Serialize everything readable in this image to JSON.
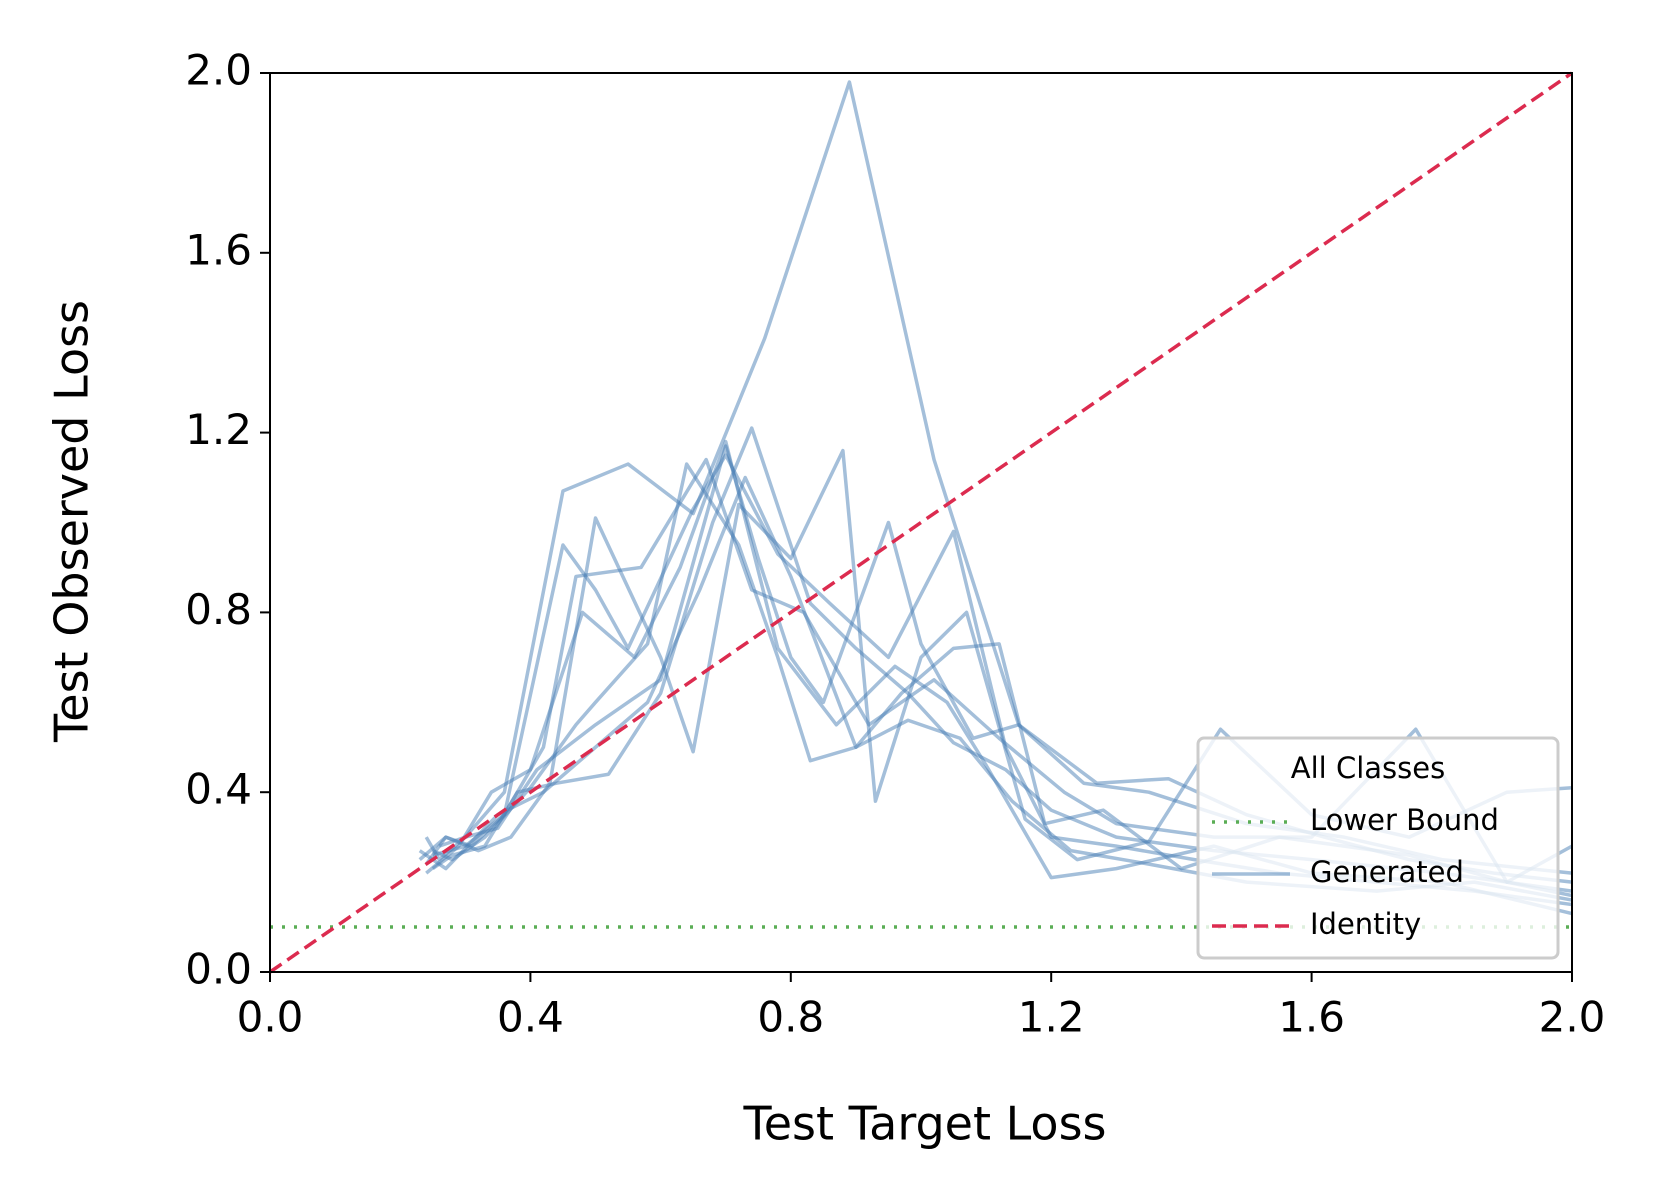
{
  "chart_data": {
    "type": "line",
    "xlabel": "Test Target Loss",
    "ylabel": "Test Observed Loss",
    "xlim": [
      0,
      2
    ],
    "ylim": [
      0,
      2
    ],
    "xticks": [
      {
        "value": 0,
        "label": "0.0"
      },
      0.4,
      0.8,
      1.2,
      1.6,
      {
        "value": 2,
        "label": "2.0"
      }
    ],
    "yticks": [
      {
        "value": 0,
        "label": "0.0"
      },
      0.4,
      0.8,
      1.2,
      1.6,
      {
        "value": 2,
        "label": "2.0"
      }
    ],
    "legend_title": "All Classes",
    "legend": "lower right",
    "series": [
      {
        "name": "Lower Bound",
        "color": "#5aad55",
        "dash": "dotted",
        "x": [
          0,
          2
        ],
        "values": [
          0.1,
          0.1
        ]
      },
      {
        "name": "Generated",
        "color": "#4a7fb5",
        "opacity": 0.5,
        "lines": [
          {
            "x": [
              0.24,
              0.26,
              0.3,
              0.36,
              0.45,
              0.55,
              0.65,
              0.76,
              0.89,
              1.02,
              1.15,
              1.27,
              1.38,
              1.5,
              1.62,
              1.75,
              1.88,
              2.0
            ],
            "values": [
              0.3,
              0.25,
              0.3,
              0.4,
              1.07,
              1.13,
              1.02,
              1.41,
              1.98,
              1.14,
              0.55,
              0.42,
              0.43,
              0.35,
              0.3,
              0.25,
              0.22,
              0.2
            ]
          },
          {
            "x": [
              0.23,
              0.27,
              0.31,
              0.36,
              0.45,
              0.5,
              0.55,
              0.65,
              0.7,
              0.78,
              0.86,
              0.95,
              1.05,
              1.13,
              1.2,
              1.3,
              1.42,
              1.55,
              1.7,
              1.85,
              2.0
            ],
            "values": [
              0.25,
              0.3,
              0.28,
              0.35,
              0.95,
              0.85,
              0.72,
              1.03,
              1.15,
              0.93,
              0.82,
              0.7,
              0.98,
              0.5,
              0.3,
              0.28,
              0.25,
              0.22,
              0.2,
              0.18,
              0.15
            ]
          },
          {
            "x": [
              0.25,
              0.28,
              0.33,
              0.4,
              0.47,
              0.5,
              0.58,
              0.64,
              0.72,
              0.78,
              0.83,
              0.9,
              0.97,
              1.05,
              1.12,
              1.19,
              1.28,
              1.4,
              1.55,
              1.75,
              1.9,
              2.0
            ],
            "values": [
              0.27,
              0.25,
              0.3,
              0.41,
              0.55,
              0.6,
              0.73,
              1.13,
              0.95,
              0.7,
              0.47,
              0.5,
              0.62,
              0.72,
              0.73,
              0.33,
              0.36,
              0.23,
              0.3,
              0.26,
              0.2,
              0.17
            ]
          },
          {
            "x": [
              0.24,
              0.27,
              0.32,
              0.37,
              0.43,
              0.5,
              0.6,
              0.65,
              0.72,
              0.8,
              0.88,
              0.93,
              1.0,
              1.07,
              1.16,
              1.24,
              1.35,
              1.46,
              1.6,
              1.75,
              1.9,
              2.0
            ],
            "values": [
              0.24,
              0.3,
              0.27,
              0.3,
              0.42,
              1.01,
              0.7,
              0.49,
              1.04,
              0.92,
              1.16,
              0.38,
              0.7,
              0.8,
              0.34,
              0.25,
              0.29,
              0.54,
              0.35,
              0.3,
              0.4,
              0.41
            ]
          },
          {
            "x": [
              0.25,
              0.3,
              0.36,
              0.42,
              0.47,
              0.57,
              0.67,
              0.74,
              0.82,
              0.92,
              1.02,
              1.12,
              1.22,
              1.3,
              1.45,
              1.6,
              1.76,
              1.9,
              2.0
            ],
            "values": [
              0.26,
              0.28,
              0.35,
              0.5,
              0.88,
              0.9,
              1.14,
              0.85,
              0.8,
              0.55,
              0.65,
              0.52,
              0.4,
              0.33,
              0.3,
              0.3,
              0.54,
              0.2,
              0.28
            ]
          },
          {
            "x": [
              0.26,
              0.3,
              0.35,
              0.41,
              0.5,
              0.6,
              0.7,
              0.75,
              0.8,
              0.85,
              0.95,
              1.0,
              1.08,
              1.15,
              1.25,
              1.35,
              1.5,
              1.65,
              1.8,
              2.0
            ],
            "values": [
              0.28,
              0.3,
              0.32,
              0.45,
              0.55,
              0.65,
              1.17,
              0.92,
              0.7,
              0.6,
              1.0,
              0.73,
              0.52,
              0.55,
              0.42,
              0.4,
              0.33,
              0.3,
              0.25,
              0.22
            ]
          },
          {
            "x": [
              0.24,
              0.29,
              0.34,
              0.4,
              0.48,
              0.56,
              0.63,
              0.7,
              0.78,
              0.87,
              0.96,
              1.04,
              1.1,
              1.2,
              1.3,
              1.45,
              1.6,
              1.8,
              2.0
            ],
            "values": [
              0.22,
              0.28,
              0.4,
              0.45,
              0.8,
              0.7,
              0.9,
              1.18,
              0.72,
              0.55,
              0.68,
              0.6,
              0.46,
              0.21,
              0.23,
              0.28,
              0.22,
              0.2,
              0.13
            ]
          },
          {
            "x": [
              0.25,
              0.28,
              0.33,
              0.38,
              0.44,
              0.52,
              0.6,
              0.68,
              0.74,
              0.83,
              0.9,
              0.98,
              1.05,
              1.13,
              1.2,
              1.3,
              1.45,
              1.6,
              1.8,
              2.0
            ],
            "values": [
              0.23,
              0.26,
              0.28,
              0.4,
              0.42,
              0.44,
              0.62,
              1.0,
              1.21,
              0.82,
              0.72,
              0.62,
              0.51,
              0.45,
              0.36,
              0.3,
              0.27,
              0.25,
              0.22,
              0.18
            ]
          },
          {
            "x": [
              0.23,
              0.27,
              0.35,
              0.42,
              0.5,
              0.58,
              0.66,
              0.73,
              0.8,
              0.9,
              0.98,
              1.06,
              1.14,
              1.23,
              1.35,
              1.5,
              1.7,
              1.85,
              2.0
            ],
            "values": [
              0.27,
              0.23,
              0.35,
              0.4,
              0.5,
              0.6,
              0.85,
              1.1,
              0.88,
              0.5,
              0.56,
              0.52,
              0.38,
              0.27,
              0.24,
              0.2,
              0.18,
              0.2,
              0.16
            ]
          }
        ]
      },
      {
        "name": "Identity",
        "color": "#dc2b4f",
        "dash": "dashed",
        "x": [
          0,
          2
        ],
        "values": [
          0,
          2
        ]
      }
    ]
  }
}
